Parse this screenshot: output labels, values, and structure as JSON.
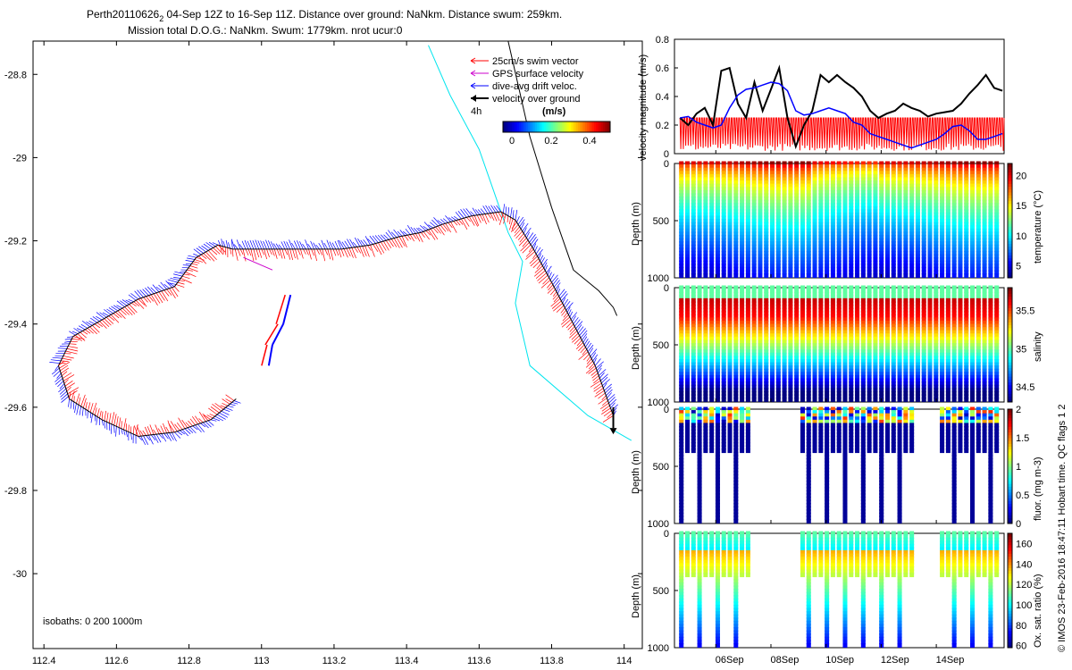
{
  "title": {
    "line1_prefix": "Perth20110626",
    "line1_sub": "2",
    "line1_rest": " 04-Sep 12Z to 16-Sep 11Z. Distance over ground: NaNkm. Distance swum: 259km.",
    "line2": "Mission total D.O.G.: NaNkm. Swum: 1779km. nrot ucur:0"
  },
  "map": {
    "legend": [
      {
        "label": "25cm/s swim vector",
        "color": "#ff0000"
      },
      {
        "label": "GPS surface velocity",
        "color": "#cc00cc"
      },
      {
        "label": "dive-avg drift veloc.",
        "color": "#0000ff"
      },
      {
        "label": "velocity over ground",
        "color": "#000000"
      }
    ],
    "colorbar_prefix": "4h",
    "colorbar_unit": "(m/s)",
    "colorbar_ticks": [
      "0",
      "0.2",
      "0.4"
    ],
    "isobaths_label": "isobaths: 0   200   1000m"
  },
  "panels": {
    "velocity": {
      "ylabel": "velocity magnitude (m/s)"
    },
    "temperature": {
      "ylabel": "Depth (m)",
      "cblabel": "temperature (°C)"
    },
    "salinity": {
      "ylabel": "Depth (m)",
      "cblabel": "salinity"
    },
    "fluor": {
      "ylabel": "Depth (m)",
      "cblabel": "fluor. (mg m-3)"
    },
    "oxygen": {
      "ylabel": "Depth (m)",
      "cblabel": "Ox. sat. ratio (%)"
    }
  },
  "footer": "© IMOS 23-Feb-2016 18:47:11 Hobart time. QC flags 1  2",
  "chart_data": [
    {
      "type": "scatter",
      "name": "glider-track-map",
      "xlabel": "",
      "ylabel": "",
      "xlim": [
        112.37,
        114.05
      ],
      "ylim": [
        -30.18,
        -28.72
      ],
      "xticks": [
        112.4,
        112.6,
        112.8,
        113,
        113.2,
        113.4,
        113.6,
        113.8,
        114
      ],
      "xtick_labels": [
        "112.4",
        "112.6",
        "112.8",
        "113",
        "113.2",
        "113.4",
        "113.6",
        "113.8",
        "114"
      ],
      "yticks": [
        -28.8,
        -29,
        -29.2,
        -29.4,
        -29.6,
        -29.8,
        -30
      ],
      "ytick_labels": [
        "-28.8",
        "-29",
        "-29.2",
        "-29.4",
        "-29.6",
        "-29.8",
        "-30"
      ],
      "track": [
        [
          113.97,
          -29.62
        ],
        [
          113.92,
          -29.5
        ],
        [
          113.86,
          -29.4
        ],
        [
          113.8,
          -29.3
        ],
        [
          113.75,
          -29.22
        ],
        [
          113.7,
          -29.15
        ],
        [
          113.66,
          -29.13
        ],
        [
          113.58,
          -29.14
        ],
        [
          113.5,
          -29.16
        ],
        [
          113.44,
          -29.18
        ],
        [
          113.38,
          -29.19
        ],
        [
          113.3,
          -29.21
        ],
        [
          113.22,
          -29.22
        ],
        [
          113.1,
          -29.22
        ],
        [
          113.0,
          -29.22
        ],
        [
          112.92,
          -29.22
        ],
        [
          112.88,
          -29.21
        ],
        [
          112.82,
          -29.24
        ],
        [
          112.76,
          -29.31
        ],
        [
          112.66,
          -29.34
        ],
        [
          112.56,
          -29.39
        ],
        [
          112.48,
          -29.43
        ],
        [
          112.44,
          -29.5
        ],
        [
          112.47,
          -29.58
        ],
        [
          112.56,
          -29.63
        ],
        [
          112.66,
          -29.67
        ],
        [
          112.76,
          -29.66
        ],
        [
          112.86,
          -29.63
        ],
        [
          112.93,
          -29.58
        ]
      ],
      "isobath_0": [
        [
          113.68,
          -28.72
        ],
        [
          113.74,
          -28.95
        ],
        [
          113.8,
          -29.12
        ],
        [
          113.86,
          -29.27
        ],
        [
          113.93,
          -29.32
        ],
        [
          113.97,
          -29.36
        ],
        [
          113.98,
          -29.38
        ]
      ],
      "isobath_200": [
        [
          113.46,
          -28.73
        ],
        [
          113.52,
          -28.85
        ],
        [
          113.6,
          -28.98
        ],
        [
          113.64,
          -29.08
        ],
        [
          113.68,
          -29.18
        ],
        [
          113.72,
          -29.25
        ],
        [
          113.7,
          -29.35
        ],
        [
          113.74,
          -29.5
        ],
        [
          113.9,
          -29.62
        ],
        [
          114.02,
          -29.68
        ]
      ]
    },
    {
      "type": "line",
      "name": "velocity-magnitude",
      "ylabel": "velocity magnitude (m/s)",
      "ylim": [
        0,
        0.8
      ],
      "yticks": [
        0,
        0.2,
        0.4,
        0.6,
        0.8
      ],
      "xlim": [
        4.5,
        16.46
      ],
      "series": [
        {
          "name": "velocity over ground",
          "color": "#000000",
          "x": [
            4.7,
            5.0,
            5.3,
            5.6,
            5.9,
            6.2,
            6.5,
            6.8,
            7.1,
            7.4,
            7.7,
            8.0,
            8.3,
            8.6,
            8.9,
            9.2,
            9.5,
            9.8,
            10.1,
            10.4,
            10.7,
            11.0,
            11.3,
            11.6,
            11.9,
            12.2,
            12.5,
            12.8,
            13.1,
            13.4,
            13.7,
            14.0,
            14.3,
            14.6,
            14.9,
            15.2,
            15.5,
            15.8,
            16.1,
            16.4
          ],
          "y": [
            0.25,
            0.2,
            0.28,
            0.32,
            0.2,
            0.58,
            0.6,
            0.35,
            0.25,
            0.5,
            0.3,
            0.45,
            0.6,
            0.25,
            0.05,
            0.2,
            0.3,
            0.55,
            0.5,
            0.55,
            0.5,
            0.46,
            0.4,
            0.3,
            0.25,
            0.28,
            0.3,
            0.35,
            0.32,
            0.3,
            0.26,
            0.28,
            0.29,
            0.3,
            0.35,
            0.42,
            0.48,
            0.55,
            0.46,
            0.44
          ]
        },
        {
          "name": "dive-avg drift veloc.",
          "color": "#0000ff",
          "x": [
            4.7,
            5.0,
            5.3,
            5.6,
            5.9,
            6.2,
            6.5,
            6.8,
            7.1,
            7.4,
            7.7,
            8.0,
            8.3,
            8.6,
            8.9,
            9.2,
            9.5,
            9.8,
            10.1,
            10.4,
            10.7,
            11.0,
            11.3,
            11.6,
            11.9,
            12.2,
            12.5,
            12.8,
            13.1,
            13.4,
            13.7,
            14.0,
            14.3,
            14.6,
            14.9,
            15.2,
            15.5,
            15.8,
            16.1,
            16.4
          ],
          "y": [
            0.25,
            0.26,
            0.22,
            0.2,
            0.18,
            0.2,
            0.32,
            0.41,
            0.45,
            0.46,
            0.48,
            0.5,
            0.49,
            0.44,
            0.3,
            0.27,
            0.28,
            0.3,
            0.32,
            0.3,
            0.28,
            0.22,
            0.2,
            0.14,
            0.12,
            0.1,
            0.08,
            0.06,
            0.04,
            0.06,
            0.08,
            0.1,
            0.14,
            0.19,
            0.2,
            0.16,
            0.1,
            0.1,
            0.12,
            0.14
          ]
        },
        {
          "name": "25cm/s swim vector",
          "color": "#ff0000",
          "x": [
            4.7,
            16.4
          ],
          "y": [
            0.25,
            0.25
          ]
        }
      ]
    },
    {
      "type": "heatmap",
      "name": "temperature-section",
      "ylabel": "Depth (m)",
      "yticks": [
        0,
        500,
        1000
      ],
      "ylim": [
        1000,
        0
      ],
      "colorbar": {
        "label": "temperature (°C)",
        "ticks": [
          5,
          10,
          15,
          20
        ],
        "range": [
          3,
          22
        ]
      }
    },
    {
      "type": "heatmap",
      "name": "salinity-section",
      "ylabel": "Depth (m)",
      "yticks": [
        0,
        500,
        1000
      ],
      "ylim": [
        1000,
        0
      ],
      "colorbar": {
        "label": "salinity",
        "ticks": [
          34.5,
          35,
          35.5
        ],
        "range": [
          34.3,
          35.8
        ]
      }
    },
    {
      "type": "heatmap",
      "name": "fluorescence-section",
      "ylabel": "Depth (m)",
      "yticks": [
        0,
        500,
        1000
      ],
      "ylim": [
        1000,
        0
      ],
      "colorbar": {
        "label": "fluor. (mg m-3)",
        "ticks": [
          0,
          0.5,
          1,
          1.5,
          2
        ],
        "range": [
          0,
          2
        ]
      }
    },
    {
      "type": "heatmap",
      "name": "oxygen-section",
      "ylabel": "Depth (m)",
      "yticks": [
        0,
        500,
        1000
      ],
      "ylim": [
        1000,
        0
      ],
      "xtick_labels": [
        "06Sep",
        "08Sep",
        "10Sep",
        "12Sep",
        "14Sep"
      ],
      "xticks": [
        6,
        8,
        10,
        12,
        14
      ],
      "colorbar": {
        "label": "Ox. sat. ratio (%)",
        "ticks": [
          60,
          80,
          100,
          120,
          140,
          160
        ],
        "range": [
          58,
          170
        ]
      }
    }
  ]
}
